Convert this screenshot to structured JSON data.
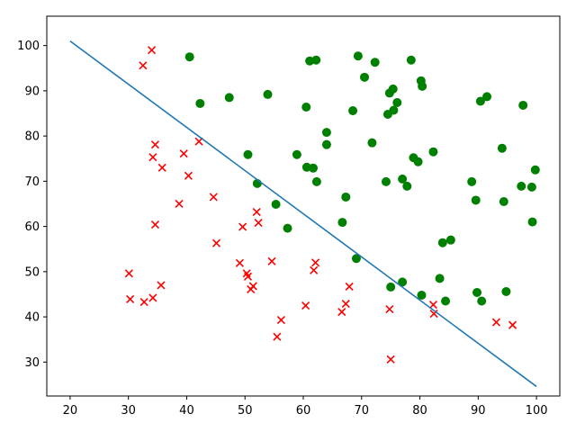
{
  "chart_data": {
    "type": "scatter",
    "title": "",
    "xlabel": "",
    "ylabel": "",
    "xlim": [
      16,
      104
    ],
    "ylim": [
      22.5,
      106.5
    ],
    "xticks": [
      20,
      30,
      40,
      50,
      60,
      70,
      80,
      90,
      100
    ],
    "yticks": [
      30,
      40,
      50,
      60,
      70,
      80,
      90,
      100
    ],
    "grid": false,
    "legend": "none",
    "series": [
      {
        "marker": "o",
        "color": "#008000",
        "points": [
          [
            40.5,
            97.5
          ],
          [
            42.3,
            87.2
          ],
          [
            47.3,
            88.5
          ],
          [
            53.9,
            89.2
          ],
          [
            50.5,
            75.9
          ],
          [
            52.1,
            69.5
          ],
          [
            55.3,
            64.9
          ],
          [
            57.3,
            59.6
          ],
          [
            58.9,
            75.9
          ],
          [
            60.5,
            86.4
          ],
          [
            60.6,
            73.1
          ],
          [
            61.1,
            96.6
          ],
          [
            61.7,
            72.9
          ],
          [
            62.2,
            96.8
          ],
          [
            62.3,
            69.9
          ],
          [
            64.0,
            80.8
          ],
          [
            64.0,
            78.1
          ],
          [
            66.7,
            60.9
          ],
          [
            67.3,
            66.5
          ],
          [
            68.5,
            85.6
          ],
          [
            69.1,
            52.9
          ],
          [
            69.4,
            97.7
          ],
          [
            70.5,
            93.0
          ],
          [
            71.8,
            78.5
          ],
          [
            72.3,
            96.3
          ],
          [
            74.2,
            69.9
          ],
          [
            74.5,
            84.8
          ],
          [
            74.8,
            89.5
          ],
          [
            75.0,
            46.6
          ],
          [
            75.4,
            90.4
          ],
          [
            75.5,
            85.7
          ],
          [
            76.1,
            87.4
          ],
          [
            77.0,
            70.5
          ],
          [
            77.0,
            47.7
          ],
          [
            77.8,
            68.9
          ],
          [
            78.5,
            96.8
          ],
          [
            78.9,
            75.2
          ],
          [
            79.7,
            74.3
          ],
          [
            80.2,
            92.2
          ],
          [
            80.3,
            44.8
          ],
          [
            80.4,
            91.0
          ],
          [
            82.3,
            76.5
          ],
          [
            83.4,
            48.5
          ],
          [
            83.9,
            56.4
          ],
          [
            84.4,
            43.5
          ],
          [
            85.3,
            57.0
          ],
          [
            88.9,
            69.9
          ],
          [
            89.6,
            65.8
          ],
          [
            89.8,
            45.4
          ],
          [
            90.4,
            87.7
          ],
          [
            90.6,
            43.5
          ],
          [
            91.5,
            88.7
          ],
          [
            94.1,
            77.3
          ],
          [
            94.4,
            65.5
          ],
          [
            94.8,
            45.6
          ],
          [
            97.4,
            68.9
          ],
          [
            97.7,
            86.8
          ],
          [
            99.2,
            68.7
          ],
          [
            99.3,
            61.0
          ],
          [
            99.8,
            72.5
          ]
        ]
      },
      {
        "marker": "x",
        "color": "#ff0000",
        "points": [
          [
            34.0,
            99.0
          ],
          [
            32.5,
            95.6
          ],
          [
            34.6,
            78.1
          ],
          [
            34.2,
            75.3
          ],
          [
            35.8,
            73.0
          ],
          [
            39.5,
            76.1
          ],
          [
            40.3,
            71.2
          ],
          [
            42.1,
            78.8
          ],
          [
            38.7,
            65.0
          ],
          [
            34.6,
            60.4
          ],
          [
            44.6,
            66.5
          ],
          [
            45.1,
            56.3
          ],
          [
            30.1,
            49.6
          ],
          [
            30.3,
            43.9
          ],
          [
            32.7,
            43.3
          ],
          [
            34.2,
            44.2
          ],
          [
            35.6,
            47.0
          ],
          [
            49.1,
            51.9
          ],
          [
            49.6,
            59.9
          ],
          [
            50.3,
            49.6
          ],
          [
            50.5,
            48.9
          ],
          [
            51.0,
            46.1
          ],
          [
            51.4,
            46.8
          ],
          [
            52.0,
            63.2
          ],
          [
            52.3,
            60.8
          ],
          [
            54.6,
            52.3
          ],
          [
            55.5,
            35.6
          ],
          [
            56.2,
            39.3
          ],
          [
            60.4,
            42.5
          ],
          [
            61.8,
            50.3
          ],
          [
            62.1,
            52.0
          ],
          [
            66.6,
            41.1
          ],
          [
            67.3,
            42.9
          ],
          [
            67.9,
            46.7
          ],
          [
            74.8,
            41.7
          ],
          [
            75.0,
            30.6
          ],
          [
            82.3,
            42.7
          ],
          [
            82.4,
            40.7
          ],
          [
            93.1,
            38.8
          ],
          [
            95.9,
            38.2
          ]
        ]
      }
    ],
    "lines": [
      {
        "color": "#1f77b4",
        "x": [
          20,
          100
        ],
        "y": [
          101.0,
          24.6
        ]
      }
    ]
  }
}
